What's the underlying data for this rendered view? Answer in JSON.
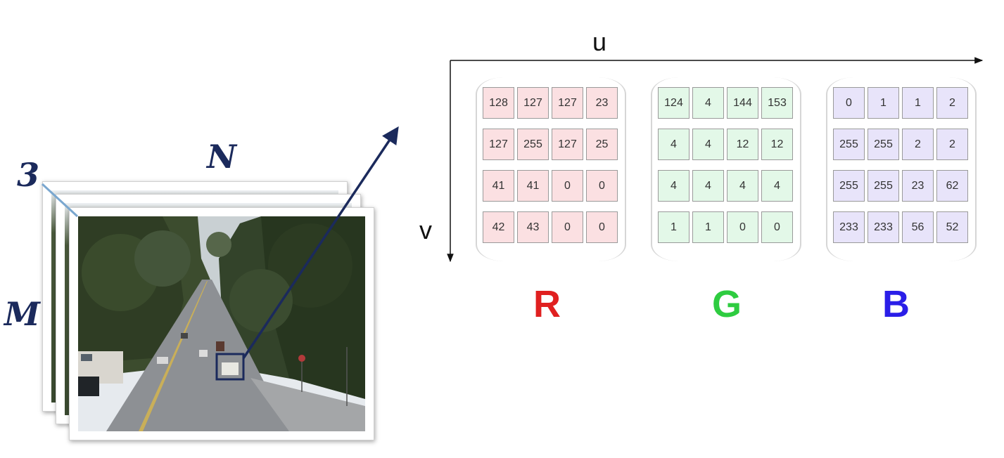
{
  "stack": {
    "depth_label": "3",
    "width_label": "N",
    "height_label": "M"
  },
  "axes": {
    "horizontal_label": "u",
    "vertical_label": "v"
  },
  "channels": [
    {
      "label": "R",
      "label_color": "#e02020",
      "cell_color": "#fbe0e2",
      "values": [
        [
          128,
          127,
          127,
          23
        ],
        [
          127,
          255,
          127,
          25
        ],
        [
          41,
          41,
          0,
          0
        ],
        [
          42,
          43,
          0,
          0
        ]
      ]
    },
    {
      "label": "G",
      "label_color": "#2ecc40",
      "cell_color": "#e3f8e8",
      "values": [
        [
          124,
          4,
          144,
          153
        ],
        [
          4,
          4,
          12,
          12
        ],
        [
          4,
          4,
          4,
          4
        ],
        [
          1,
          1,
          0,
          0
        ]
      ]
    },
    {
      "label": "B",
      "label_color": "#2a1ee8",
      "cell_color": "#e8e4fa",
      "values": [
        [
          0,
          1,
          1,
          2
        ],
        [
          255,
          255,
          2,
          2
        ],
        [
          255,
          255,
          23,
          62
        ],
        [
          233,
          233,
          56,
          52
        ]
      ]
    }
  ],
  "colors": {
    "stack_label": "#1b2a5c",
    "pointer": "#1b2a5c"
  }
}
